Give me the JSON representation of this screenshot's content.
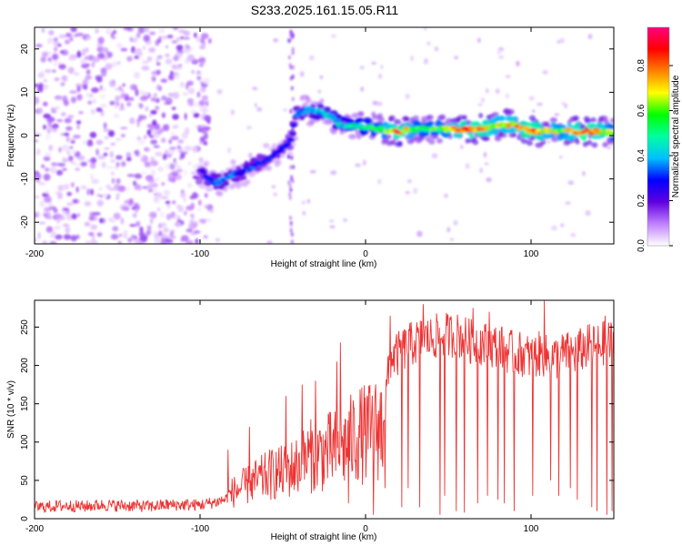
{
  "figure": {
    "title": "S233.2025.161.15.05.R11"
  },
  "chart_data": [
    {
      "type": "heatmap",
      "xlabel": "Height of straight line (km)",
      "ylabel": "Frequency (Hz)",
      "xlim": [
        -200,
        150
      ],
      "ylim": [
        -25,
        25
      ],
      "xticks": [
        -200,
        -100,
        0,
        100
      ],
      "yticks": [
        -20,
        -10,
        0,
        10,
        20
      ],
      "colorbar": {
        "label": "Normalized spectral amplitude",
        "range": [
          0,
          0.97
        ],
        "ticks": [
          "0.0",
          "0.2",
          "0.4",
          "0.6",
          "0.8"
        ],
        "colors": [
          "#ffffff",
          "#c080ff",
          "#6000e0",
          "#0000ff",
          "#00c0ff",
          "#00ffa0",
          "#00ff00",
          "#ffff00",
          "#ff8000",
          "#ff0000",
          "#ff0080"
        ]
      },
      "noise_region": {
        "x_range": [
          -200,
          -100
        ],
        "freq_range": [
          -25,
          25
        ],
        "amplitude": 0.1
      },
      "ridge": [
        {
          "x": -100,
          "freq": -8,
          "amp": 0.25
        },
        {
          "x": -95,
          "freq": -10,
          "amp": 0.3
        },
        {
          "x": -90,
          "freq": -11,
          "amp": 0.35
        },
        {
          "x": -85,
          "freq": -10,
          "amp": 0.35
        },
        {
          "x": -80,
          "freq": -9,
          "amp": 0.35
        },
        {
          "x": -75,
          "freq": -8.5,
          "amp": 0.3
        },
        {
          "x": -70,
          "freq": -7.5,
          "amp": 0.35
        },
        {
          "x": -65,
          "freq": -6.5,
          "amp": 0.3
        },
        {
          "x": -60,
          "freq": -5.5,
          "amp": 0.3
        },
        {
          "x": -55,
          "freq": -4.5,
          "amp": 0.3
        },
        {
          "x": -50,
          "freq": -3,
          "amp": 0.3
        },
        {
          "x": -45,
          "freq": -1,
          "amp": 0.25
        },
        {
          "x": -42,
          "freq": 5,
          "amp": 0.35
        },
        {
          "x": -35,
          "freq": 6,
          "amp": 0.4
        },
        {
          "x": -28,
          "freq": 5.5,
          "amp": 0.4
        },
        {
          "x": -22,
          "freq": 4.5,
          "amp": 0.45
        },
        {
          "x": -15,
          "freq": 2.5,
          "amp": 0.45
        },
        {
          "x": -8,
          "freq": 2,
          "amp": 0.5
        },
        {
          "x": 0,
          "freq": 2,
          "amp": 0.55
        },
        {
          "x": 10,
          "freq": 1.5,
          "amp": 0.6
        },
        {
          "x": 20,
          "freq": 1,
          "amp": 0.9
        },
        {
          "x": 30,
          "freq": 1.5,
          "amp": 0.6
        },
        {
          "x": 40,
          "freq": 1.5,
          "amp": 0.6
        },
        {
          "x": 50,
          "freq": 1.5,
          "amp": 0.65
        },
        {
          "x": 60,
          "freq": 1.5,
          "amp": 0.85
        },
        {
          "x": 70,
          "freq": 1.5,
          "amp": 0.85
        },
        {
          "x": 80,
          "freq": 2.5,
          "amp": 0.7
        },
        {
          "x": 90,
          "freq": 2.5,
          "amp": 0.75
        },
        {
          "x": 100,
          "freq": 1,
          "amp": 0.9
        },
        {
          "x": 110,
          "freq": 1,
          "amp": 0.7
        },
        {
          "x": 120,
          "freq": 1,
          "amp": 0.65
        },
        {
          "x": 130,
          "freq": 1,
          "amp": 0.9
        },
        {
          "x": 140,
          "freq": 1,
          "amp": 0.8
        },
        {
          "x": 150,
          "freq": 0.5,
          "amp": 0.6
        }
      ]
    },
    {
      "type": "line",
      "xlabel": "Height of straight line (km)",
      "ylabel": "SNR (10 * v/v)",
      "xlim": [
        -200,
        150
      ],
      "ylim": [
        0,
        285
      ],
      "xticks": [
        -200,
        -100,
        0,
        100
      ],
      "yticks": [
        0,
        50,
        100,
        150,
        200,
        250
      ],
      "line_color": "#ee3333",
      "series": [
        {
          "x": [
            -200,
            -190,
            -180,
            -170,
            -160,
            -150,
            -140,
            -130,
            -120,
            -110,
            -100,
            -95,
            -90,
            -85,
            -80,
            -75,
            -70,
            -65,
            -60,
            -55,
            -50,
            -45,
            -40,
            -35,
            -30,
            -25,
            -20,
            -15,
            -10,
            -5,
            0,
            5,
            10,
            15,
            20,
            25,
            30,
            35,
            40,
            45,
            50,
            55,
            60,
            65,
            70,
            75,
            80,
            85,
            90,
            95,
            100,
            105,
            110,
            115,
            120,
            125,
            130,
            135,
            140,
            145,
            150
          ],
          "values": [
            15,
            16,
            17,
            16,
            18,
            17,
            17,
            16,
            18,
            18,
            18,
            20,
            22,
            25,
            35,
            40,
            45,
            50,
            55,
            60,
            60,
            65,
            70,
            80,
            85,
            85,
            90,
            90,
            100,
            110,
            110,
            115,
            120,
            210,
            215,
            225,
            230,
            235,
            235,
            240,
            240,
            240,
            235,
            230,
            230,
            225,
            225,
            220,
            215,
            215,
            210,
            215,
            210,
            210,
            215,
            215,
            220,
            225,
            225,
            230,
            230
          ]
        }
      ],
      "spikes": [
        {
          "x": -83,
          "y": 90
        },
        {
          "x": -70,
          "y": 120
        },
        {
          "x": -48,
          "y": 160
        },
        {
          "x": -38,
          "y": 175
        },
        {
          "x": -30,
          "y": 180
        },
        {
          "x": -17,
          "y": 205
        },
        {
          "x": -15,
          "y": 230
        },
        {
          "x": 15,
          "y": 265
        },
        {
          "x": 35,
          "y": 280
        },
        {
          "x": 65,
          "y": 275
        },
        {
          "x": 75,
          "y": 270
        },
        {
          "x": 108,
          "y": 285
        },
        {
          "x": 145,
          "y": 265
        }
      ],
      "drops": [
        {
          "x": -10,
          "y": 20
        },
        {
          "x": 5,
          "y": 5
        },
        {
          "x": 12,
          "y": 40
        },
        {
          "x": 22,
          "y": 15
        },
        {
          "x": 26,
          "y": 40
        },
        {
          "x": 33,
          "y": 15
        },
        {
          "x": 45,
          "y": 5
        },
        {
          "x": 48,
          "y": 30
        },
        {
          "x": 55,
          "y": 10
        },
        {
          "x": 60,
          "y": 8
        },
        {
          "x": 68,
          "y": 20
        },
        {
          "x": 74,
          "y": 30
        },
        {
          "x": 80,
          "y": 25
        },
        {
          "x": 84,
          "y": 20
        },
        {
          "x": 90,
          "y": 10
        },
        {
          "x": 101,
          "y": 30
        },
        {
          "x": 112,
          "y": 50
        },
        {
          "x": 117,
          "y": 30
        },
        {
          "x": 124,
          "y": 40
        },
        {
          "x": 128,
          "y": 25
        },
        {
          "x": 137,
          "y": 15
        },
        {
          "x": 140,
          "y": 10
        },
        {
          "x": 146,
          "y": 5
        },
        {
          "x": 149,
          "y": 10
        }
      ]
    }
  ]
}
